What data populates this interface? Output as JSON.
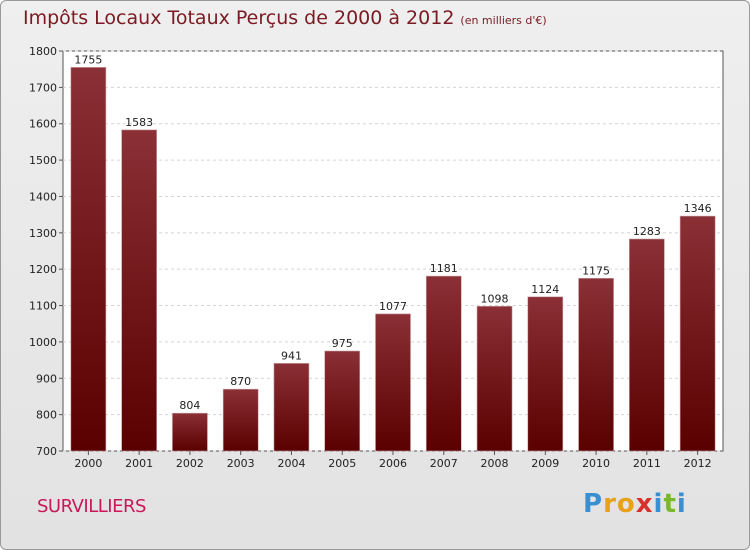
{
  "header": {
    "title": "Impôts Locaux Totaux Perçus de 2000 à 2012",
    "unit": "(en milliers d'€)"
  },
  "footer": {
    "commune": "SURVILLIERS",
    "logo_letters": [
      "P",
      "r",
      "o",
      "x",
      "i",
      "t",
      "i"
    ],
    "logo_colors": [
      "#3a8fd0",
      "#e8a21a",
      "#e8a21a",
      "#d8302a",
      "#3a8fd0",
      "#7ab82a",
      "#3a8fd0"
    ]
  },
  "colors": {
    "bar_top": "#8a3036",
    "bar_bottom": "#5a0000",
    "plot_background": "#ffffff"
  },
  "chart_data": {
    "type": "bar",
    "categories": [
      "2000",
      "2001",
      "2002",
      "2003",
      "2004",
      "2005",
      "2006",
      "2007",
      "2008",
      "2009",
      "2010",
      "2011",
      "2012"
    ],
    "values": [
      1755,
      1583,
      804,
      870,
      941,
      975,
      1077,
      1181,
      1098,
      1124,
      1175,
      1283,
      1346
    ],
    "yticks": [
      "700",
      "800",
      "900",
      "1000",
      "1100",
      "1200",
      "1300",
      "1400",
      "1500",
      "1600",
      "1700",
      "1800"
    ],
    "ylim": [
      700,
      1800
    ],
    "grid": true,
    "xlabel": "",
    "ylabel": ""
  }
}
